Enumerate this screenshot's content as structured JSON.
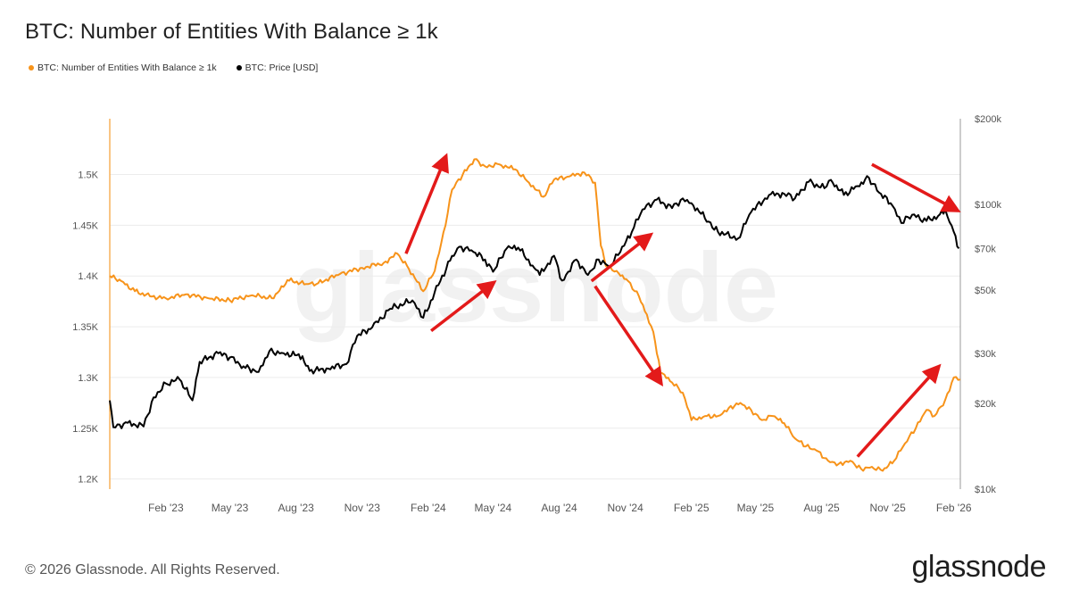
{
  "title": "BTC: Number of Entities With Balance ≥ 1k",
  "legend": [
    {
      "label": "BTC: Number of Entities With Balance ≥ 1k",
      "color": "#f7931a"
    },
    {
      "label": "BTC: Price [USD]",
      "color": "#000000"
    }
  ],
  "watermark": "glassnode",
  "footer": {
    "copyright": "© 2026 Glassnode. All Rights Reserved.",
    "brand": "glassnode"
  },
  "chart_data": {
    "type": "line",
    "x_ticks": [
      "Feb '23",
      "May '23",
      "Aug '23",
      "Nov '23",
      "Feb '24",
      "May '24",
      "Aug '24",
      "Nov '24",
      "Feb '25",
      "May '25",
      "Aug '25",
      "Nov '25",
      "Feb '26"
    ],
    "x_range": [
      "2022-11-15",
      "2026-02-10"
    ],
    "y_left": {
      "ticks": [
        "1.2K",
        "1.25K",
        "1.3K",
        "1.35K",
        "1.4K",
        "1.45K",
        "1.5K"
      ],
      "range": [
        1190,
        1555
      ]
    },
    "y_right": {
      "ticks": [
        "$10k",
        "$20k",
        "$30k",
        "$50k",
        "$70k",
        "$100k",
        "$200k"
      ],
      "scale": "log",
      "range": [
        10000,
        200000
      ]
    },
    "series": [
      {
        "name": "BTC: Number of Entities With Balance ≥ 1k",
        "color": "#f7931a",
        "axis": "left",
        "points": [
          [
            "2022-11-15",
            1400
          ],
          [
            "2022-12-01",
            1395
          ],
          [
            "2022-12-20",
            1385
          ],
          [
            "2023-01-10",
            1380
          ],
          [
            "2023-02-01",
            1378
          ],
          [
            "2023-03-01",
            1382
          ],
          [
            "2023-04-01",
            1378
          ],
          [
            "2023-05-01",
            1376
          ],
          [
            "2023-06-01",
            1381
          ],
          [
            "2023-07-01",
            1378
          ],
          [
            "2023-07-20",
            1396
          ],
          [
            "2023-08-15",
            1392
          ],
          [
            "2023-09-01",
            1393
          ],
          [
            "2023-10-01",
            1402
          ],
          [
            "2023-11-01",
            1408
          ],
          [
            "2023-12-01",
            1413
          ],
          [
            "2023-12-20",
            1422
          ],
          [
            "2024-01-05",
            1407
          ],
          [
            "2024-01-25",
            1385
          ],
          [
            "2024-02-10",
            1405
          ],
          [
            "2024-02-25",
            1450
          ],
          [
            "2024-03-05",
            1485
          ],
          [
            "2024-03-20",
            1500
          ],
          [
            "2024-04-05",
            1515
          ],
          [
            "2024-04-20",
            1508
          ],
          [
            "2024-05-10",
            1510
          ],
          [
            "2024-06-01",
            1505
          ],
          [
            "2024-06-20",
            1492
          ],
          [
            "2024-07-10",
            1478
          ],
          [
            "2024-07-25",
            1495
          ],
          [
            "2024-08-15",
            1498
          ],
          [
            "2024-09-05",
            1502
          ],
          [
            "2024-09-20",
            1492
          ],
          [
            "2024-09-28",
            1430
          ],
          [
            "2024-10-05",
            1410
          ],
          [
            "2024-10-20",
            1405
          ],
          [
            "2024-11-05",
            1395
          ],
          [
            "2024-11-20",
            1380
          ],
          [
            "2024-12-01",
            1362
          ],
          [
            "2024-12-10",
            1345
          ],
          [
            "2024-12-20",
            1305
          ],
          [
            "2025-01-05",
            1295
          ],
          [
            "2025-01-20",
            1285
          ],
          [
            "2025-02-01",
            1258
          ],
          [
            "2025-02-20",
            1262
          ],
          [
            "2025-03-10",
            1262
          ],
          [
            "2025-03-25",
            1270
          ],
          [
            "2025-04-10",
            1275
          ],
          [
            "2025-04-25",
            1268
          ],
          [
            "2025-05-10",
            1258
          ],
          [
            "2025-05-25",
            1262
          ],
          [
            "2025-06-10",
            1255
          ],
          [
            "2025-06-25",
            1240
          ],
          [
            "2025-07-10",
            1232
          ],
          [
            "2025-07-25",
            1228
          ],
          [
            "2025-08-10",
            1218
          ],
          [
            "2025-08-25",
            1215
          ],
          [
            "2025-09-10",
            1218
          ],
          [
            "2025-09-25",
            1210
          ],
          [
            "2025-10-10",
            1212
          ],
          [
            "2025-10-25",
            1208
          ],
          [
            "2025-11-10",
            1218
          ],
          [
            "2025-11-25",
            1235
          ],
          [
            "2025-12-10",
            1250
          ],
          [
            "2025-12-25",
            1268
          ],
          [
            "2026-01-05",
            1262
          ],
          [
            "2026-01-20",
            1278
          ],
          [
            "2026-02-01",
            1300
          ],
          [
            "2026-02-10",
            1298
          ]
        ]
      },
      {
        "name": "BTC: Price [USD]",
        "color": "#000000",
        "axis": "right",
        "points": [
          [
            "2022-11-15",
            20500
          ],
          [
            "2022-11-20",
            16500
          ],
          [
            "2022-12-10",
            17100
          ],
          [
            "2023-01-01",
            16600
          ],
          [
            "2023-01-15",
            21000
          ],
          [
            "2023-02-01",
            23500
          ],
          [
            "2023-02-20",
            24300
          ],
          [
            "2023-03-10",
            20500
          ],
          [
            "2023-03-20",
            28000
          ],
          [
            "2023-04-15",
            30000
          ],
          [
            "2023-05-01",
            29000
          ],
          [
            "2023-05-20",
            27000
          ],
          [
            "2023-06-10",
            25800
          ],
          [
            "2023-06-25",
            30500
          ],
          [
            "2023-07-15",
            30000
          ],
          [
            "2023-08-10",
            29300
          ],
          [
            "2023-08-20",
            26000
          ],
          [
            "2023-09-15",
            26500
          ],
          [
            "2023-10-10",
            27500
          ],
          [
            "2023-10-25",
            34500
          ],
          [
            "2023-11-15",
            37000
          ],
          [
            "2023-12-10",
            43000
          ],
          [
            "2024-01-10",
            46000
          ],
          [
            "2024-01-25",
            40000
          ],
          [
            "2024-02-15",
            52000
          ],
          [
            "2024-03-05",
            66000
          ],
          [
            "2024-03-15",
            71000
          ],
          [
            "2024-04-01",
            69000
          ],
          [
            "2024-04-20",
            64000
          ],
          [
            "2024-05-01",
            58000
          ],
          [
            "2024-05-20",
            70000
          ],
          [
            "2024-06-05",
            70500
          ],
          [
            "2024-06-25",
            61000
          ],
          [
            "2024-07-05",
            56500
          ],
          [
            "2024-07-25",
            66000
          ],
          [
            "2024-08-05",
            54000
          ],
          [
            "2024-08-25",
            64000
          ],
          [
            "2024-09-10",
            56500
          ],
          [
            "2024-09-25",
            64000
          ],
          [
            "2024-10-10",
            60500
          ],
          [
            "2024-10-25",
            68000
          ],
          [
            "2024-11-10",
            80000
          ],
          [
            "2024-11-25",
            96000
          ],
          [
            "2024-12-15",
            104000
          ],
          [
            "2025-01-05",
            97000
          ],
          [
            "2025-01-20",
            105000
          ],
          [
            "2025-02-01",
            101000
          ],
          [
            "2025-02-25",
            87000
          ],
          [
            "2025-03-10",
            80000
          ],
          [
            "2025-04-07",
            76000
          ],
          [
            "2025-04-25",
            94000
          ],
          [
            "2025-05-20",
            108000
          ],
          [
            "2025-06-10",
            109000
          ],
          [
            "2025-06-25",
            105000
          ],
          [
            "2025-07-14",
            120000
          ],
          [
            "2025-08-05",
            114000
          ],
          [
            "2025-08-14",
            122000
          ],
          [
            "2025-09-01",
            108000
          ],
          [
            "2025-09-20",
            116000
          ],
          [
            "2025-10-06",
            124000
          ],
          [
            "2025-10-20",
            110000
          ],
          [
            "2025-11-05",
            101000
          ],
          [
            "2025-11-20",
            86000
          ],
          [
            "2025-12-05",
            92000
          ],
          [
            "2025-12-25",
            87500
          ],
          [
            "2026-01-10",
            91000
          ],
          [
            "2026-01-20",
            96000
          ],
          [
            "2026-02-01",
            80000
          ],
          [
            "2026-02-08",
            70000
          ]
        ]
      }
    ],
    "annotations": [
      {
        "type": "arrow",
        "color": "#e31a1a",
        "from": [
          "2024-01-01",
          1422
        ],
        "to": [
          "2024-02-25",
          1517
        ]
      },
      {
        "type": "arrow",
        "color": "#e31a1a",
        "from": [
          "2024-02-05",
          1346
        ],
        "to": [
          "2024-05-01",
          1393
        ]
      },
      {
        "type": "arrow",
        "color": "#e31a1a",
        "from": [
          "2024-09-15",
          1395
        ],
        "to": [
          "2024-12-05",
          1440
        ]
      },
      {
        "type": "arrow",
        "color": "#e31a1a",
        "from": [
          "2024-09-20",
          1390
        ],
        "to": [
          "2024-12-20",
          1295
        ]
      },
      {
        "type": "arrow",
        "color": "#e31a1a",
        "from": [
          "2025-09-20",
          1222
        ],
        "to": [
          "2026-01-10",
          1310
        ]
      },
      {
        "type": "arrow",
        "color": "#e31a1a",
        "from": [
          "2025-10-10",
          1510
        ],
        "to": [
          "2026-02-05",
          1465
        ]
      }
    ]
  }
}
